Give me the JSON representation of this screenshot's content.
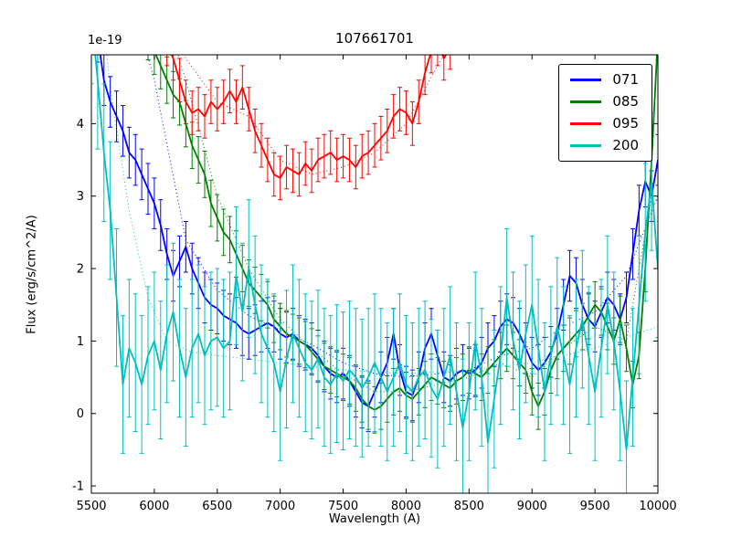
{
  "chart_data": {
    "type": "line",
    "title": "107661701",
    "xlabel": "Wavelength (A)",
    "ylabel": "Flux (erg/s/cm^2/A)",
    "y_offset_label": "1e-19",
    "grid": false,
    "legend_position": "upper right",
    "xlim": [
      5500,
      10000
    ],
    "ylim": [
      -1.1,
      4.95
    ],
    "xticks": [
      5500,
      6000,
      6500,
      7000,
      7500,
      8000,
      8500,
      9000,
      9500,
      10000
    ],
    "yticks": [
      -1,
      0,
      1,
      2,
      3,
      4
    ],
    "x_start": 5500,
    "x_step": 50,
    "series": [
      {
        "name": "071",
        "color": "#0000ff",
        "err": 0.35,
        "values": [
          6.0,
          5.2,
          4.6,
          4.3,
          4.1,
          3.9,
          3.6,
          3.5,
          3.3,
          3.1,
          2.9,
          2.6,
          2.2,
          1.9,
          2.1,
          2.3,
          2.0,
          1.8,
          1.6,
          1.5,
          1.45,
          1.35,
          1.3,
          1.25,
          1.15,
          1.1,
          1.15,
          1.2,
          1.25,
          1.2,
          1.1,
          1.05,
          1.1,
          1.0,
          0.95,
          0.9,
          0.8,
          0.65,
          0.55,
          0.5,
          0.55,
          0.45,
          0.3,
          0.15,
          0.1,
          0.3,
          0.5,
          0.7,
          1.1,
          0.6,
          0.3,
          0.25,
          0.5,
          0.9,
          1.1,
          0.8,
          0.5,
          0.45,
          0.55,
          0.6,
          0.55,
          0.6,
          0.7,
          0.9,
          1.0,
          1.2,
          1.3,
          1.25,
          1.1,
          0.9,
          0.7,
          0.6,
          0.7,
          0.85,
          1.1,
          1.5,
          1.9,
          1.8,
          1.5,
          1.3,
          1.2,
          1.4,
          1.6,
          1.5,
          1.3,
          1.6,
          2.2,
          2.8,
          3.2,
          3.0,
          3.5
        ]
      },
      {
        "name": "085",
        "color": "#007f00",
        "err": 0.32,
        "values": [
          8.0,
          7.6,
          7.2,
          6.8,
          6.5,
          6.2,
          5.9,
          5.6,
          5.4,
          5.2,
          5.0,
          4.8,
          4.6,
          4.4,
          4.3,
          4.0,
          3.7,
          3.5,
          3.3,
          2.9,
          2.7,
          2.5,
          2.4,
          2.2,
          2.0,
          1.8,
          1.7,
          1.6,
          1.5,
          1.3,
          1.2,
          1.1,
          1.05,
          1.0,
          0.95,
          0.85,
          0.75,
          0.65,
          0.6,
          0.55,
          0.5,
          0.45,
          0.35,
          0.2,
          0.1,
          0.05,
          0.1,
          0.2,
          0.3,
          0.35,
          0.25,
          0.2,
          0.3,
          0.4,
          0.5,
          0.45,
          0.4,
          0.35,
          0.45,
          0.5,
          0.6,
          0.55,
          0.5,
          0.6,
          0.7,
          0.8,
          0.9,
          0.8,
          0.7,
          0.6,
          0.3,
          0.1,
          0.3,
          0.6,
          0.8,
          0.9,
          1.0,
          1.1,
          1.2,
          1.35,
          1.5,
          1.4,
          1.2,
          1.0,
          1.3,
          0.9,
          0.4,
          0.8,
          2.0,
          3.5,
          5.2
        ]
      },
      {
        "name": "095",
        "color": "#ff0000",
        "err": 0.3,
        "values": [
          9.0,
          8.6,
          8.2,
          7.8,
          7.4,
          7.0,
          6.6,
          6.3,
          6.0,
          5.7,
          5.5,
          5.3,
          5.1,
          4.9,
          4.6,
          4.3,
          4.15,
          4.2,
          4.1,
          4.3,
          4.2,
          4.3,
          4.45,
          4.3,
          4.5,
          4.2,
          3.9,
          3.7,
          3.5,
          3.3,
          3.25,
          3.4,
          3.35,
          3.3,
          3.45,
          3.35,
          3.5,
          3.55,
          3.6,
          3.5,
          3.55,
          3.5,
          3.4,
          3.55,
          3.6,
          3.7,
          3.8,
          3.9,
          4.1,
          4.2,
          4.15,
          4.0,
          4.3,
          4.7,
          5.0,
          5.1,
          4.9,
          5.05,
          5.3,
          5.6,
          6.0,
          6.4,
          6.8,
          7.2,
          7.6,
          8.0,
          8.4,
          8.8,
          9.2,
          9.6,
          10,
          10,
          10,
          10,
          10,
          10,
          10,
          10,
          10,
          10,
          10,
          10,
          10,
          10,
          10,
          10,
          10,
          10,
          10,
          10,
          10
        ]
      },
      {
        "name": "200",
        "color": "#00bfbf",
        "err": 0.95,
        "values": [
          5.5,
          4.6,
          3.6,
          2.8,
          1.6,
          0.4,
          0.9,
          0.7,
          0.4,
          0.8,
          1.0,
          0.6,
          1.1,
          1.4,
          0.9,
          0.5,
          0.9,
          1.1,
          0.8,
          1.0,
          1.05,
          0.9,
          1.0,
          1.9,
          1.4,
          2.0,
          1.5,
          1.1,
          0.9,
          0.7,
          0.3,
          0.75,
          1.1,
          0.9,
          0.7,
          0.6,
          0.75,
          0.5,
          0.4,
          0.55,
          0.45,
          0.6,
          0.5,
          0.35,
          0.5,
          0.7,
          0.5,
          0.3,
          0.5,
          0.7,
          0.4,
          0.3,
          0.5,
          0.6,
          0.35,
          0.2,
          0.5,
          0.8,
          0.3,
          -0.2,
          0.3,
          1.0,
          0.5,
          -0.4,
          0.2,
          0.8,
          1.6,
          1.0,
          0.6,
          1.1,
          1.5,
          0.9,
          0.3,
          0.8,
          1.2,
          0.8,
          0.4,
          0.9,
          1.3,
          0.8,
          0.3,
          0.9,
          1.5,
          1.0,
          0.3,
          -0.5,
          0.5,
          1.5,
          2.5,
          3.2,
          2.0
        ]
      }
    ],
    "templates": [
      {
        "name": "071-template",
        "color": "#0000ff",
        "x": [
          5500,
          5750,
          6000,
          6250,
          6500,
          6750,
          7000,
          7250,
          7500,
          7750,
          8000,
          8250,
          8500,
          8750,
          9000,
          9250,
          9500,
          9750,
          10000
        ],
        "values": [
          8,
          6.2,
          4.6,
          2.4,
          1.7,
          1.35,
          1.15,
          0.95,
          0.7,
          0.55,
          0.5,
          0.55,
          0.6,
          0.8,
          0.9,
          1.2,
          1.4,
          1.9,
          3.0
        ]
      },
      {
        "name": "085-template",
        "color": "#007f00",
        "x": [
          5500,
          5750,
          6000,
          6250,
          6500,
          6750,
          7000,
          7250,
          7500,
          7750,
          8000,
          8250,
          8500,
          8750,
          9000,
          9250,
          9500,
          9750,
          10000
        ],
        "values": [
          9,
          7.5,
          6.0,
          4.6,
          3.0,
          2.0,
          1.3,
          0.9,
          0.55,
          0.3,
          0.3,
          0.4,
          0.5,
          0.7,
          0.5,
          0.9,
          1.2,
          1.0,
          3.5
        ]
      },
      {
        "name": "095-template",
        "color": "#ff0000",
        "x": [
          5500,
          5750,
          6000,
          6250,
          6500,
          6750,
          7000,
          7250,
          7500,
          7750,
          8000,
          8250,
          8500,
          8750,
          9000
        ],
        "values": [
          10,
          8,
          6.3,
          4.9,
          4.3,
          4.1,
          3.5,
          3.3,
          3.4,
          3.6,
          4.0,
          4.8,
          5.6,
          6.5,
          7.5
        ]
      },
      {
        "name": "200-template",
        "color": "#00bfbf",
        "x": [
          5500,
          5650,
          5800,
          5950,
          6100,
          6300,
          6500,
          7000,
          7500,
          8000,
          8500,
          9000,
          9500,
          10000
        ],
        "values": [
          7,
          4.5,
          2.8,
          1.6,
          1.0,
          0.85,
          0.8,
          0.7,
          0.6,
          0.55,
          0.6,
          0.7,
          0.9,
          1.2
        ]
      }
    ]
  },
  "legend": {
    "items": [
      {
        "label": "071",
        "color": "#0000ff"
      },
      {
        "label": "085",
        "color": "#007f00"
      },
      {
        "label": "095",
        "color": "#ff0000"
      },
      {
        "label": "200",
        "color": "#00bfbf"
      }
    ]
  }
}
